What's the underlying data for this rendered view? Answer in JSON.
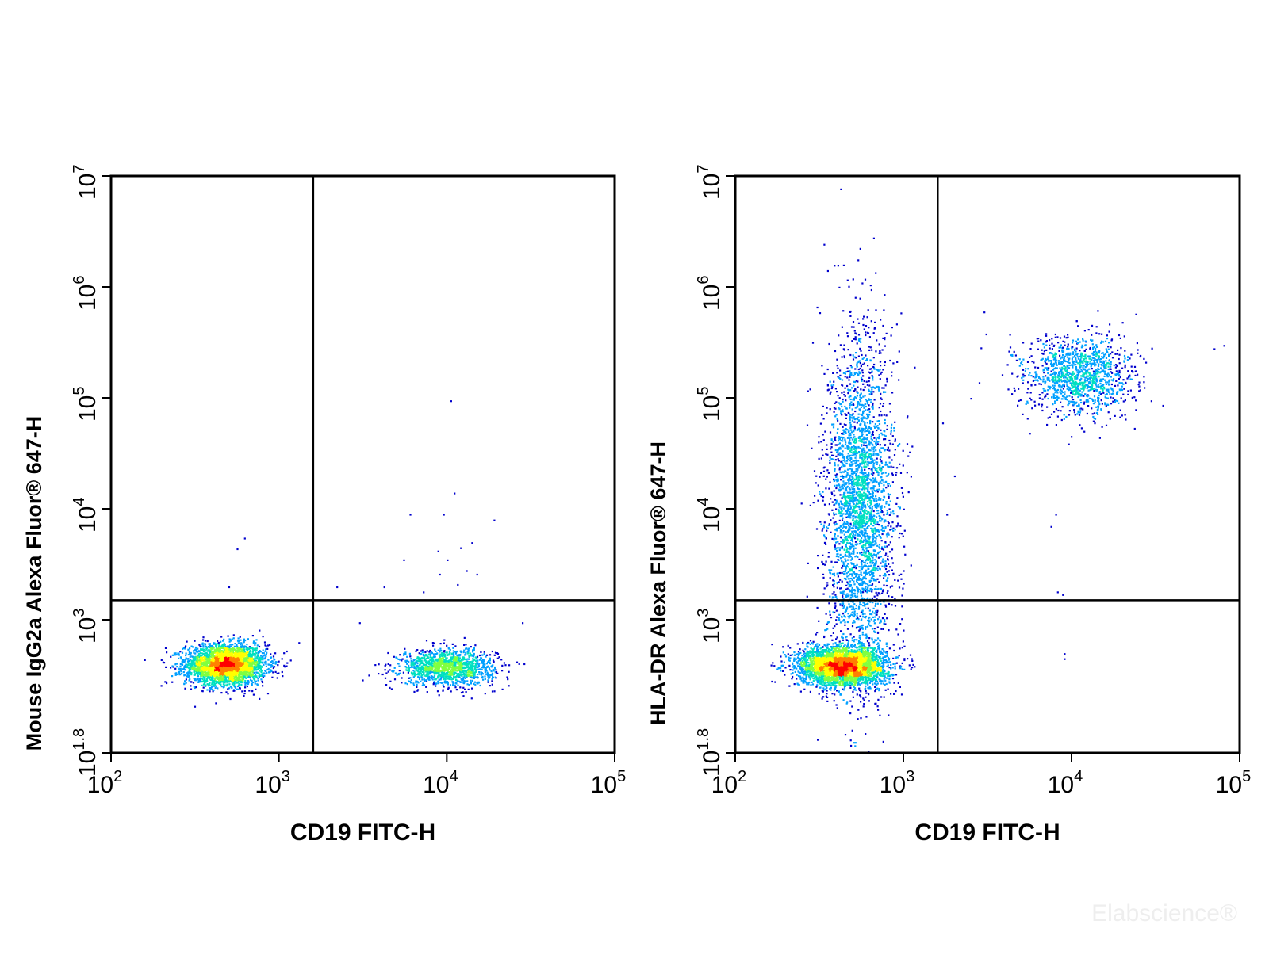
{
  "watermark": "Elabscience®",
  "chart_data": [
    {
      "type": "scatter",
      "xlabel": "CD19 FITC-H",
      "ylabel": "Mouse IgG2a Alexa Fluor® 647-H",
      "xscale": "log",
      "yscale": "log",
      "xlim": [
        100,
        100000
      ],
      "ylim": [
        63.1,
        10000000
      ],
      "x_ticks": [
        {
          "base": "10",
          "exp": "2"
        },
        {
          "base": "10",
          "exp": "3"
        },
        {
          "base": "10",
          "exp": "4"
        },
        {
          "base": "10",
          "exp": "5"
        }
      ],
      "y_ticks": [
        {
          "base": "10",
          "exp": "1.8"
        },
        {
          "base": "10",
          "exp": "3"
        },
        {
          "base": "10",
          "exp": "4"
        },
        {
          "base": "10",
          "exp": "5"
        },
        {
          "base": "10",
          "exp": "6"
        },
        {
          "base": "10",
          "exp": "7"
        }
      ],
      "gate": {
        "x": 1600,
        "y": 1500
      },
      "colormap": [
        "#0000cd",
        "#00a0ff",
        "#00e0c0",
        "#80ff40",
        "#ffff00",
        "#ff8000",
        "#ff0000"
      ],
      "populations": [
        {
          "name": "",
          "x_center": 480,
          "y_center": 400,
          "x_spread_log": 0.12,
          "y_spread_log": 0.09,
          "count": 3200
        },
        {
          "name": "",
          "x_center": 10000,
          "y_center": 380,
          "x_spread_log": 0.14,
          "y_spread_log": 0.08,
          "count": 1400
        }
      ],
      "sparse_points": [
        [
          560,
          4400
        ],
        [
          620,
          5500
        ],
        [
          500,
          2000
        ],
        [
          10500,
          95000
        ],
        [
          11000,
          14000
        ],
        [
          6000,
          9000
        ],
        [
          9500,
          9000
        ],
        [
          19000,
          8000
        ],
        [
          8800,
          4200
        ],
        [
          12000,
          4500
        ],
        [
          14000,
          5000
        ],
        [
          10000,
          3500
        ],
        [
          13000,
          2800
        ],
        [
          9000,
          2600
        ],
        [
          11500,
          2100
        ],
        [
          15000,
          2600
        ],
        [
          5500,
          3500
        ],
        [
          4200,
          2000
        ],
        [
          2200,
          2000
        ],
        [
          7200,
          1800
        ],
        [
          3000,
          950
        ],
        [
          28000,
          950
        ]
      ]
    },
    {
      "type": "scatter",
      "xlabel": "CD19 FITC-H",
      "ylabel": "HLA-DR Alexa Fluor® 647-H",
      "xscale": "log",
      "yscale": "log",
      "xlim": [
        100,
        100000
      ],
      "ylim": [
        63.1,
        10000000
      ],
      "x_ticks": [
        {
          "base": "10",
          "exp": "2"
        },
        {
          "base": "10",
          "exp": "3"
        },
        {
          "base": "10",
          "exp": "4"
        },
        {
          "base": "10",
          "exp": "5"
        }
      ],
      "y_ticks": [
        {
          "base": "10",
          "exp": "1.8"
        },
        {
          "base": "10",
          "exp": "3"
        },
        {
          "base": "10",
          "exp": "4"
        },
        {
          "base": "10",
          "exp": "5"
        },
        {
          "base": "10",
          "exp": "6"
        },
        {
          "base": "10",
          "exp": "7"
        }
      ],
      "gate": {
        "x": 1600,
        "y": 1500
      },
      "colormap": [
        "#0000cd",
        "#00a0ff",
        "#00e0c0",
        "#80ff40",
        "#ffff00",
        "#ff8000",
        "#ff0000"
      ],
      "populations": [
        {
          "name": "",
          "x_center": 430,
          "y_center": 390,
          "x_spread_log": 0.13,
          "y_spread_log": 0.09,
          "count": 3500
        },
        {
          "name": "",
          "x_center": 550,
          "y_center": 10000,
          "x_spread_log": 0.1,
          "y_spread_log": 0.75,
          "count": 3200
        },
        {
          "name": "",
          "x_center": 11000,
          "y_center": 160000,
          "x_spread_log": 0.16,
          "y_spread_log": 0.18,
          "count": 1300
        }
      ],
      "sparse_points": [
        [
          8000,
          9000
        ],
        [
          7500,
          7000
        ],
        [
          8200,
          1800
        ],
        [
          8800,
          1700
        ],
        [
          9000,
          500
        ],
        [
          9000,
          450
        ],
        [
          1800,
          9000
        ],
        [
          2000,
          20000
        ],
        [
          1700,
          60000
        ],
        [
          3000,
          600000
        ],
        [
          80000,
          300000
        ],
        [
          70000,
          280000
        ],
        [
          2500,
          100000
        ]
      ]
    }
  ]
}
